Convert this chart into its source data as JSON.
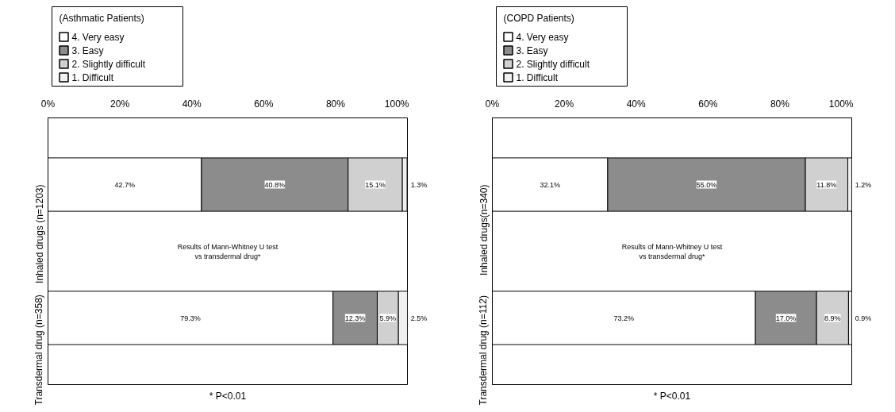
{
  "chart_data": [
    {
      "type": "bar",
      "stacked": true,
      "orientation": "horizontal",
      "legend": "top left",
      "legend_title": "(Asthmatic Patients)",
      "grid": false,
      "categories": [
        "Inhaled drugs (n=1203)",
        "Transdermal drug (n=358)"
      ],
      "xlim": [
        0,
        100
      ],
      "xticks": [
        {
          "value": 0,
          "label": "0%"
        },
        {
          "value": 20,
          "label": "20%"
        },
        {
          "value": 40,
          "label": "40%"
        },
        {
          "value": 60,
          "label": "60%"
        },
        {
          "value": 80,
          "label": "80%"
        },
        {
          "value": 100,
          "label": "100%"
        }
      ],
      "series": [
        {
          "name": "4. Very easy",
          "color": "#ffffff",
          "values": [
            42.7,
            79.3
          ],
          "value_labels": [
            "42.7%",
            "79.3%"
          ]
        },
        {
          "name": "3. Easy",
          "color": "#8c8c8c",
          "values": [
            40.8,
            12.3
          ],
          "value_labels": [
            "40.8%",
            "12.3%"
          ]
        },
        {
          "name": "2. Slightly difficult",
          "color": "#d0d0d0",
          "values": [
            15.1,
            5.9
          ],
          "value_labels": [
            "15.1%",
            "5.9%"
          ]
        },
        {
          "name": "1. Difficult",
          "color": "#f0f0f0",
          "values": [
            1.3,
            2.5
          ],
          "value_labels": [
            "1.3%",
            "2.5%"
          ]
        }
      ],
      "annotations": [
        "Results of Mann-Whitney U test vs transdermal drug*",
        "* P<0.01"
      ]
    },
    {
      "type": "bar",
      "stacked": true,
      "orientation": "horizontal",
      "legend": "top left",
      "legend_title": "(COPD Patients)",
      "grid": false,
      "categories": [
        "Inhaled drugs(n=340)",
        "Transdermal drug (n=112)"
      ],
      "xlim": [
        0,
        100
      ],
      "xticks": [
        {
          "value": 0,
          "label": "0%"
        },
        {
          "value": 20,
          "label": "20%"
        },
        {
          "value": 40,
          "label": "40%"
        },
        {
          "value": 60,
          "label": "60%"
        },
        {
          "value": 80,
          "label": "80%"
        },
        {
          "value": 100,
          "label": "100%"
        }
      ],
      "series": [
        {
          "name": "4. Very easy",
          "color": "#ffffff",
          "values": [
            32.1,
            73.2
          ],
          "value_labels": [
            "32.1%",
            "73.2%"
          ]
        },
        {
          "name": "3. Easy",
          "color": "#8c8c8c",
          "values": [
            55.0,
            17.0
          ],
          "value_labels": [
            "55.0%",
            "17.0%"
          ]
        },
        {
          "name": "2. Slightly difficult",
          "color": "#d0d0d0",
          "values": [
            11.8,
            8.9
          ],
          "value_labels": [
            "11.8%",
            "8.9%"
          ]
        },
        {
          "name": "1. Difficult",
          "color": "#f0f0f0",
          "values": [
            1.2,
            0.9
          ],
          "value_labels": [
            "1.2%",
            "0.9%"
          ]
        }
      ],
      "annotations": [
        "Results of Mann-Whitney U test vs transdermal drug*",
        "* P<0.01"
      ]
    }
  ]
}
